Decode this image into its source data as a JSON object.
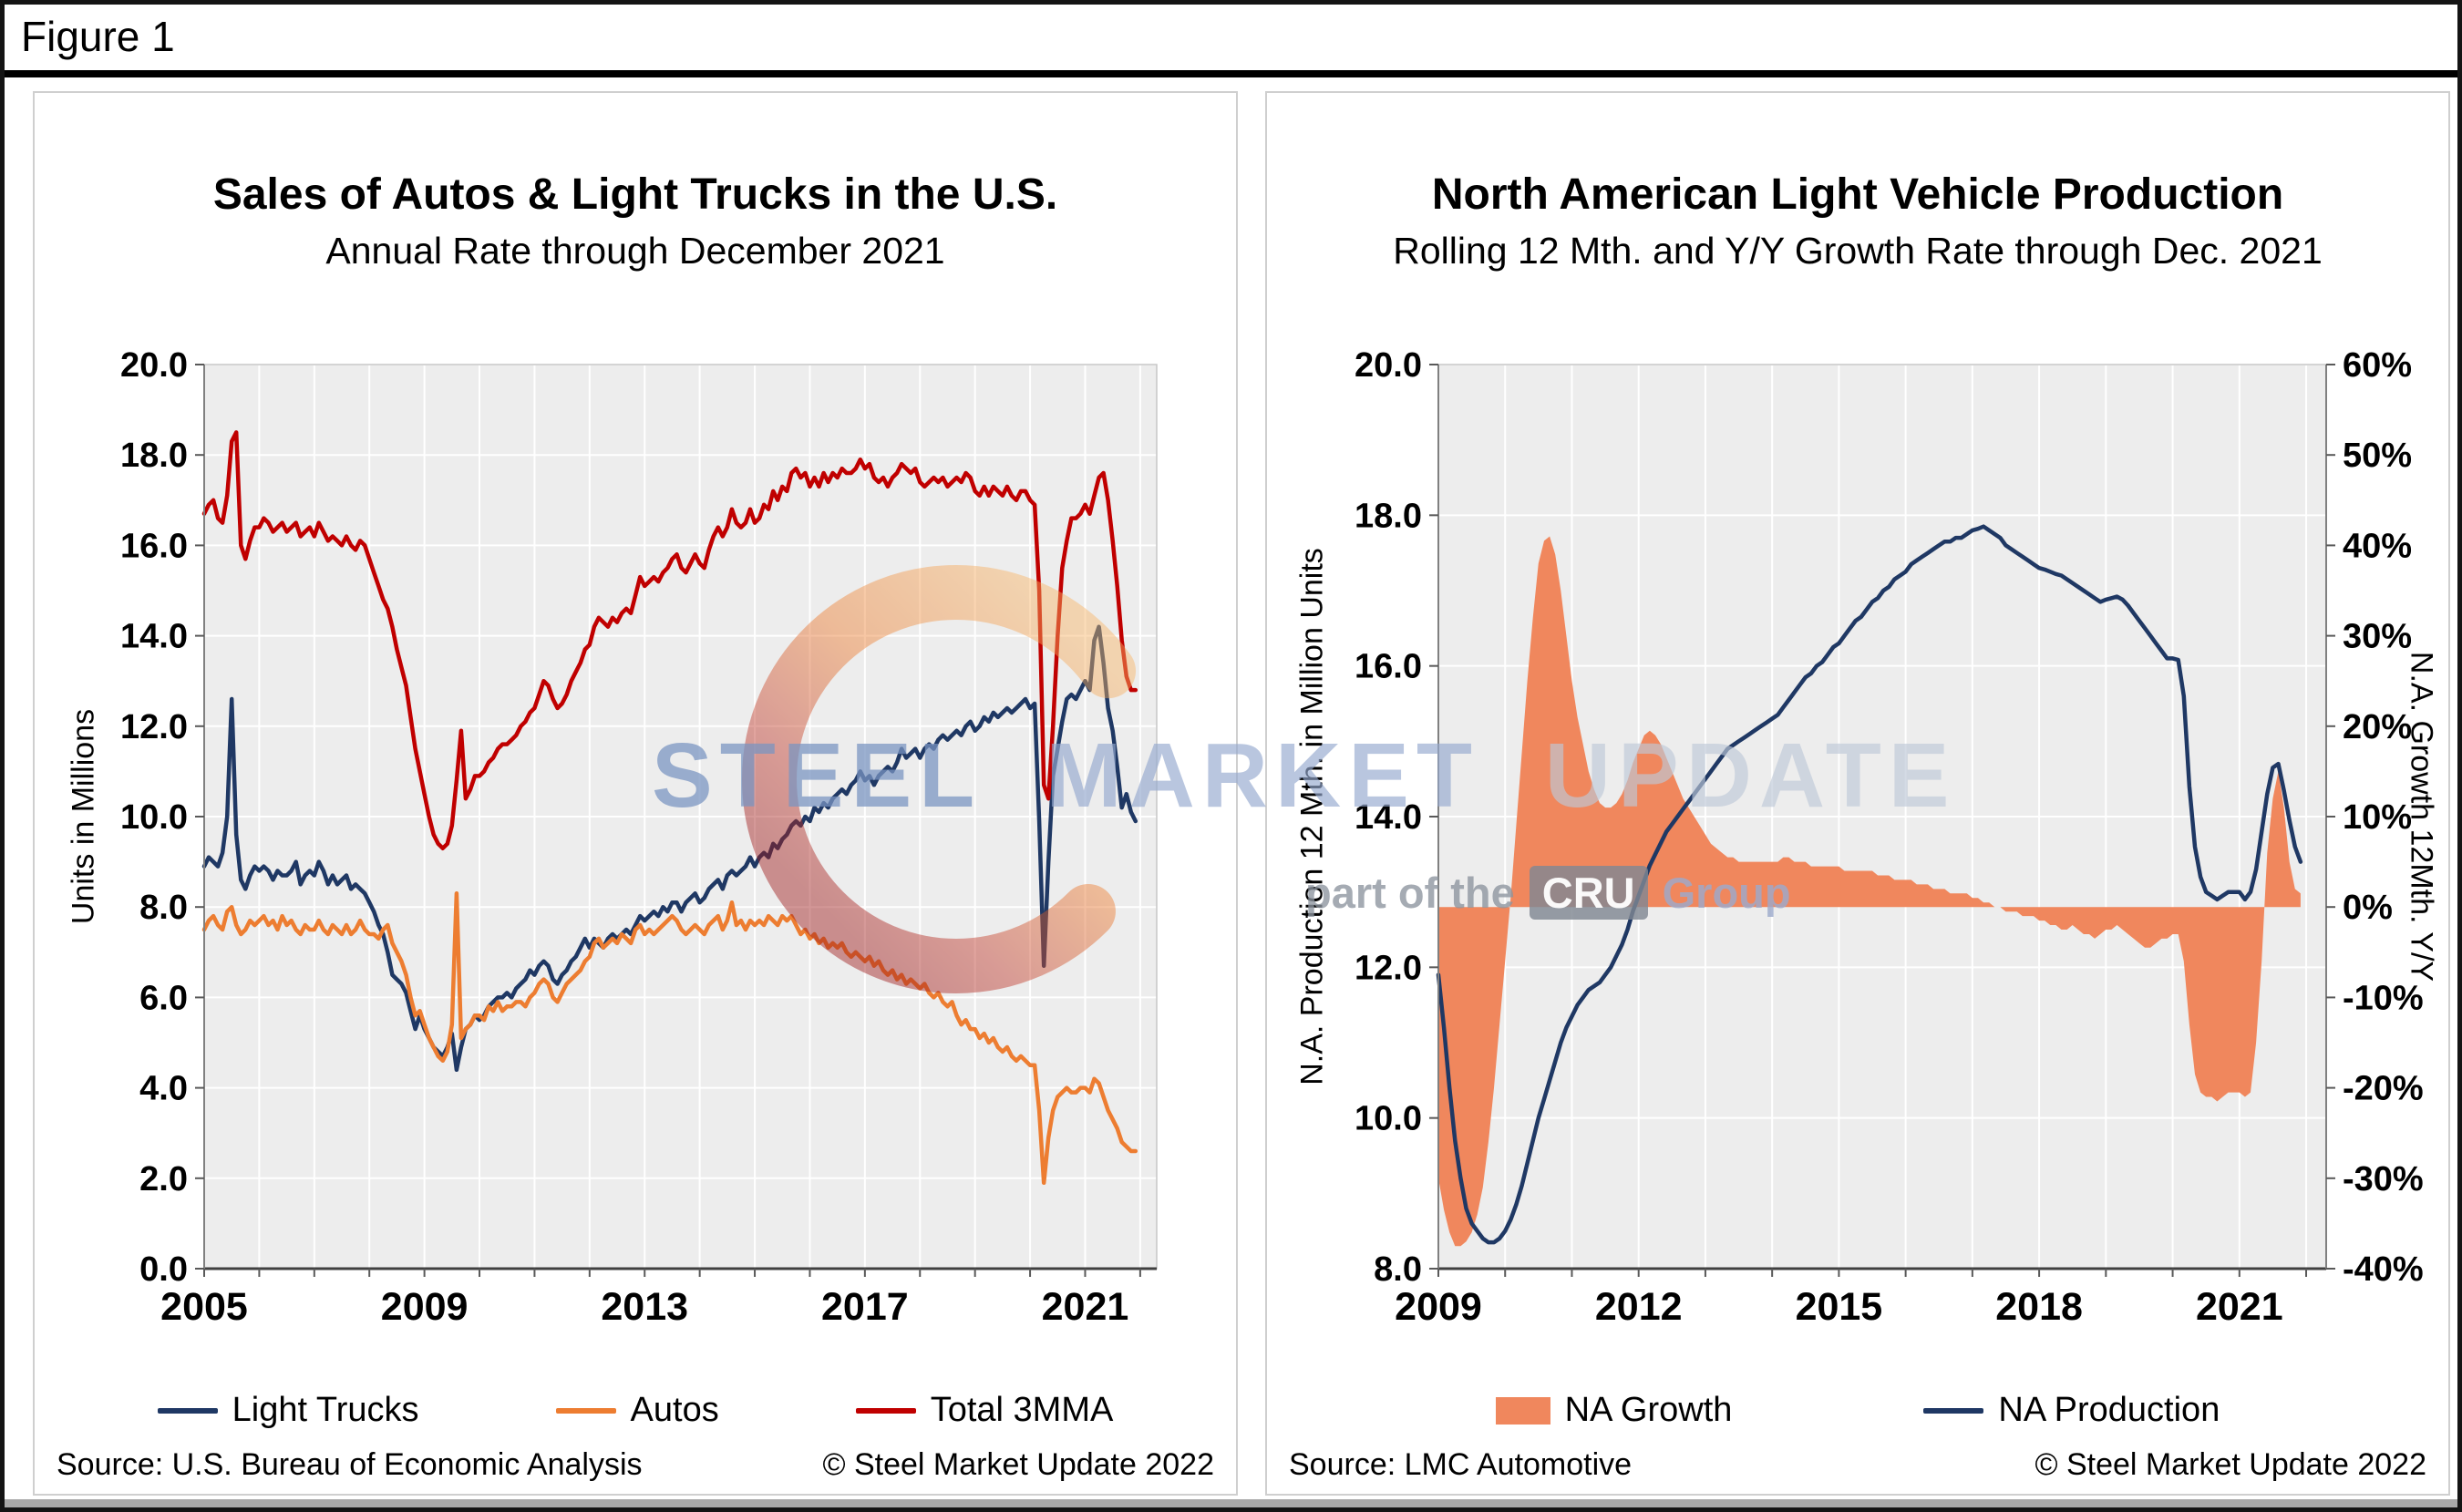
{
  "figure": {
    "label": "Figure 1"
  },
  "watermark": {
    "word1": "STEEL",
    "word2": "MARKET",
    "word3": "UPDATE",
    "tagline_prefix": "part of the",
    "tagline_box": "CRU",
    "tagline_suffix": "Group"
  },
  "colors": {
    "light_trucks": "#1F3864",
    "autos": "#ED7D31",
    "total_3mma": "#C00000",
    "na_growth": "#F0875D",
    "na_production": "#1F3864",
    "plot_bg": "#EDEDED",
    "gridline": "#FFFFFF"
  },
  "chart_data": [
    {
      "type": "line",
      "title": "Sales of Autos & Light Trucks in the U.S.",
      "subtitle": "Annual Rate through December 2021",
      "y_left": {
        "label": "Units in Millions",
        "min": 0,
        "max": 20,
        "step": 2,
        "decimals": 1
      },
      "x": {
        "min": 2005,
        "max": 2022.3,
        "start": 2005.0,
        "interval_months": 1,
        "ticks": [
          2005,
          2009,
          2013,
          2017,
          2021
        ]
      },
      "grid": true,
      "legend_position": "bottom",
      "source": "Source: U.S. Bureau of Economic Analysis",
      "copyright": "© Steel Market Update 2022",
      "series": [
        {
          "name": "Light Trucks",
          "type": "line",
          "axis": "left",
          "color": "#1F3864",
          "values": [
            8.9,
            9.1,
            9.0,
            8.9,
            9.2,
            10.0,
            12.6,
            9.6,
            8.6,
            8.4,
            8.7,
            8.9,
            8.8,
            8.9,
            8.8,
            8.6,
            8.8,
            8.7,
            8.7,
            8.8,
            9.0,
            8.5,
            8.7,
            8.8,
            8.7,
            9.0,
            8.8,
            8.5,
            8.7,
            8.5,
            8.6,
            8.7,
            8.4,
            8.5,
            8.4,
            8.3,
            8.1,
            7.9,
            7.6,
            7.4,
            7.0,
            6.5,
            6.4,
            6.3,
            6.1,
            5.7,
            5.3,
            5.6,
            5.3,
            5.1,
            4.9,
            4.8,
            4.7,
            4.9,
            5.2,
            4.4,
            4.9,
            5.3,
            5.4,
            5.6,
            5.5,
            5.6,
            5.8,
            5.9,
            6.0,
            6.0,
            6.1,
            6.0,
            6.2,
            6.3,
            6.4,
            6.6,
            6.5,
            6.7,
            6.8,
            6.7,
            6.4,
            6.3,
            6.5,
            6.6,
            6.8,
            6.9,
            7.1,
            7.3,
            7.1,
            7.3,
            7.2,
            7.1,
            7.3,
            7.4,
            7.3,
            7.4,
            7.5,
            7.4,
            7.6,
            7.8,
            7.7,
            7.8,
            7.9,
            7.8,
            8.0,
            7.9,
            8.1,
            8.1,
            7.9,
            8.1,
            8.2,
            8.3,
            8.1,
            8.2,
            8.4,
            8.5,
            8.6,
            8.4,
            8.7,
            8.8,
            8.7,
            8.8,
            8.9,
            9.1,
            8.9,
            9.1,
            9.2,
            9.1,
            9.4,
            9.3,
            9.5,
            9.6,
            9.8,
            9.9,
            9.8,
            10.0,
            9.9,
            10.2,
            10.1,
            10.3,
            10.2,
            10.4,
            10.5,
            10.6,
            10.5,
            10.7,
            10.8,
            11.0,
            10.8,
            10.9,
            10.7,
            10.9,
            11.0,
            11.1,
            11.0,
            11.2,
            11.5,
            11.3,
            11.4,
            11.5,
            11.3,
            11.5,
            11.6,
            11.5,
            11.7,
            11.8,
            11.7,
            11.8,
            11.9,
            11.8,
            12.0,
            12.1,
            11.9,
            12.0,
            12.2,
            12.1,
            12.3,
            12.2,
            12.3,
            12.4,
            12.3,
            12.4,
            12.5,
            12.6,
            12.4,
            12.5,
            9.9,
            6.7,
            9.0,
            10.9,
            11.5,
            12.1,
            12.6,
            12.7,
            12.6,
            12.8,
            13.0,
            12.8,
            13.9,
            14.2,
            13.4,
            12.4,
            11.9,
            11.1,
            10.2,
            10.5,
            10.1,
            9.9
          ]
        },
        {
          "name": "Autos",
          "type": "line",
          "axis": "left",
          "color": "#ED7D31",
          "values": [
            7.5,
            7.7,
            7.8,
            7.6,
            7.5,
            7.9,
            8.0,
            7.6,
            7.4,
            7.5,
            7.7,
            7.6,
            7.7,
            7.8,
            7.6,
            7.7,
            7.5,
            7.8,
            7.6,
            7.7,
            7.5,
            7.4,
            7.6,
            7.5,
            7.5,
            7.7,
            7.5,
            7.4,
            7.6,
            7.5,
            7.4,
            7.6,
            7.4,
            7.5,
            7.7,
            7.5,
            7.4,
            7.4,
            7.3,
            7.5,
            7.6,
            7.2,
            7.0,
            6.8,
            6.5,
            6.0,
            5.6,
            5.7,
            5.4,
            5.1,
            4.9,
            4.7,
            4.6,
            4.8,
            5.4,
            8.3,
            5.1,
            5.3,
            5.4,
            5.6,
            5.6,
            5.5,
            5.8,
            5.7,
            5.9,
            5.7,
            5.8,
            5.8,
            5.9,
            5.9,
            5.8,
            6.0,
            6.1,
            6.3,
            6.4,
            6.3,
            6.0,
            5.9,
            6.1,
            6.3,
            6.4,
            6.5,
            6.6,
            6.8,
            6.9,
            7.2,
            7.3,
            7.1,
            7.2,
            7.3,
            7.2,
            7.4,
            7.3,
            7.2,
            7.5,
            7.6,
            7.4,
            7.5,
            7.4,
            7.5,
            7.6,
            7.7,
            7.8,
            7.7,
            7.5,
            7.4,
            7.5,
            7.6,
            7.5,
            7.4,
            7.6,
            7.7,
            7.8,
            7.5,
            7.7,
            8.1,
            7.6,
            7.7,
            7.5,
            7.7,
            7.6,
            7.7,
            7.6,
            7.8,
            7.7,
            7.6,
            7.8,
            7.7,
            7.8,
            7.6,
            7.4,
            7.5,
            7.3,
            7.4,
            7.2,
            7.3,
            7.1,
            7.2,
            7.1,
            7.2,
            7.0,
            6.9,
            7.0,
            6.9,
            6.8,
            6.9,
            6.7,
            6.8,
            6.6,
            6.5,
            6.6,
            6.4,
            6.5,
            6.3,
            6.4,
            6.3,
            6.2,
            6.3,
            6.1,
            6.0,
            6.1,
            5.9,
            5.8,
            5.9,
            5.6,
            5.4,
            5.5,
            5.3,
            5.3,
            5.1,
            5.2,
            5.0,
            5.1,
            4.9,
            4.8,
            4.9,
            4.7,
            4.6,
            4.7,
            4.6,
            4.5,
            4.5,
            3.5,
            1.9,
            2.9,
            3.5,
            3.8,
            3.9,
            4.0,
            3.9,
            3.9,
            4.0,
            4.0,
            3.9,
            4.2,
            4.1,
            3.8,
            3.5,
            3.3,
            3.1,
            2.8,
            2.7,
            2.6,
            2.6
          ]
        },
        {
          "name": "Total 3MMA",
          "type": "line",
          "axis": "left",
          "color": "#C00000",
          "values": [
            16.7,
            16.9,
            17.0,
            16.6,
            16.5,
            17.1,
            18.3,
            18.5,
            16.0,
            15.7,
            16.1,
            16.4,
            16.4,
            16.6,
            16.5,
            16.3,
            16.4,
            16.5,
            16.3,
            16.4,
            16.5,
            16.2,
            16.3,
            16.4,
            16.2,
            16.5,
            16.3,
            16.1,
            16.2,
            16.1,
            16.0,
            16.2,
            16.0,
            15.9,
            16.1,
            16.0,
            15.7,
            15.4,
            15.1,
            14.8,
            14.6,
            14.2,
            13.7,
            13.3,
            12.9,
            12.2,
            11.5,
            11.0,
            10.5,
            10.0,
            9.6,
            9.4,
            9.3,
            9.4,
            9.8,
            10.8,
            11.9,
            10.4,
            10.6,
            10.9,
            10.9,
            11.0,
            11.2,
            11.3,
            11.5,
            11.6,
            11.6,
            11.7,
            11.8,
            12.0,
            12.1,
            12.3,
            12.4,
            12.7,
            13.0,
            12.9,
            12.6,
            12.4,
            12.5,
            12.7,
            13.0,
            13.2,
            13.4,
            13.7,
            13.8,
            14.2,
            14.4,
            14.3,
            14.2,
            14.4,
            14.3,
            14.5,
            14.6,
            14.5,
            14.9,
            15.3,
            15.1,
            15.2,
            15.3,
            15.2,
            15.4,
            15.5,
            15.7,
            15.8,
            15.5,
            15.4,
            15.6,
            15.8,
            15.6,
            15.5,
            15.9,
            16.2,
            16.4,
            16.2,
            16.4,
            16.8,
            16.5,
            16.4,
            16.5,
            16.8,
            16.5,
            16.6,
            16.9,
            16.8,
            17.2,
            17.0,
            17.3,
            17.2,
            17.6,
            17.7,
            17.5,
            17.6,
            17.3,
            17.5,
            17.3,
            17.6,
            17.4,
            17.6,
            17.5,
            17.7,
            17.6,
            17.6,
            17.7,
            17.9,
            17.7,
            17.8,
            17.5,
            17.4,
            17.5,
            17.3,
            17.5,
            17.6,
            17.8,
            17.7,
            17.6,
            17.7,
            17.4,
            17.3,
            17.4,
            17.5,
            17.4,
            17.5,
            17.3,
            17.4,
            17.5,
            17.4,
            17.6,
            17.5,
            17.2,
            17.1,
            17.3,
            17.1,
            17.3,
            17.2,
            17.1,
            17.3,
            17.1,
            17.0,
            17.2,
            17.2,
            17.0,
            16.9,
            15.0,
            10.7,
            10.4,
            12.0,
            14.0,
            15.5,
            16.1,
            16.6,
            16.6,
            16.7,
            16.9,
            16.7,
            17.1,
            17.5,
            17.6,
            17.0,
            16.1,
            15.1,
            13.9,
            13.1,
            12.8,
            12.8
          ]
        }
      ]
    },
    {
      "type": "line",
      "title": "North American Light Vehicle Production",
      "subtitle": "Rolling 12 Mth. and Y/Y Growth Rate through Dec. 2021",
      "y_left": {
        "label": "N.A. Production 12 Mth. in Million Units",
        "min": 8,
        "max": 20,
        "step": 2,
        "decimals": 1
      },
      "y_right": {
        "label": "N.A. Growth 12Mth. Y/Y",
        "min": -40,
        "max": 60,
        "step": 10,
        "suffix": "%"
      },
      "x": {
        "min": 2009,
        "max": 2022.3,
        "start": 2009.0,
        "interval_months": 1,
        "ticks": [
          2009,
          2012,
          2015,
          2018,
          2021
        ]
      },
      "grid": true,
      "legend_position": "bottom",
      "source": "Source: LMC Automotive",
      "copyright": "© Steel Market Update 2022",
      "series": [
        {
          "name": "NA Growth",
          "type": "area",
          "axis": "right",
          "color": "#F0875D",
          "values": [
            -30,
            -33.5,
            -36,
            -37.5,
            -37.5,
            -37,
            -36,
            -34,
            -31,
            -26,
            -20,
            -13,
            -6,
            1,
            9,
            17,
            25,
            32,
            38,
            40.5,
            41,
            39,
            35,
            30,
            25,
            21,
            18,
            15,
            13,
            11.5,
            11,
            11,
            11.5,
            12.5,
            14,
            16,
            17.5,
            19,
            19.5,
            19,
            18,
            16.5,
            15,
            13.5,
            12,
            11,
            10,
            9,
            8,
            7,
            6.5,
            6,
            5.5,
            5.5,
            5,
            5,
            5,
            5,
            5,
            5,
            5,
            5,
            5.5,
            5.5,
            5,
            5,
            5,
            4.5,
            4.5,
            4.5,
            4.5,
            4.5,
            4.5,
            4,
            4,
            4,
            4,
            4,
            4,
            3.5,
            3.5,
            3.5,
            3,
            3,
            3,
            3,
            2.5,
            2.5,
            2.5,
            2,
            2,
            2,
            1.5,
            1.5,
            1.5,
            1.5,
            1,
            1,
            0.5,
            0.5,
            0,
            0,
            -0.5,
            -0.5,
            -0.5,
            -1,
            -1,
            -1,
            -1.5,
            -1.5,
            -2,
            -2,
            -2.5,
            -2.5,
            -2,
            -2.5,
            -3,
            -3,
            -3.5,
            -3,
            -2.5,
            -2.5,
            -2,
            -2.5,
            -3,
            -3.5,
            -4,
            -4.5,
            -4.5,
            -4,
            -3.5,
            -3.5,
            -3,
            -3,
            -6,
            -13,
            -18.5,
            -20.5,
            -21,
            -21,
            -21.5,
            -21,
            -20.5,
            -20.5,
            -20.5,
            -21,
            -20.5,
            -15,
            -6,
            6,
            12,
            15,
            11,
            5,
            2,
            1.5
          ]
        },
        {
          "name": "NA Production",
          "type": "line",
          "axis": "left",
          "color": "#1F3864",
          "values": [
            11.9,
            11.2,
            10.4,
            9.7,
            9.2,
            8.8,
            8.6,
            8.5,
            8.4,
            8.35,
            8.35,
            8.4,
            8.5,
            8.65,
            8.85,
            9.1,
            9.4,
            9.7,
            10.0,
            10.25,
            10.5,
            10.75,
            11.0,
            11.2,
            11.35,
            11.5,
            11.6,
            11.7,
            11.75,
            11.8,
            11.9,
            12.0,
            12.15,
            12.3,
            12.5,
            12.75,
            12.95,
            13.15,
            13.35,
            13.5,
            13.65,
            13.8,
            13.9,
            14.0,
            14.1,
            14.2,
            14.3,
            14.4,
            14.5,
            14.6,
            14.7,
            14.8,
            14.9,
            14.95,
            15.0,
            15.05,
            15.1,
            15.15,
            15.2,
            15.25,
            15.3,
            15.35,
            15.45,
            15.55,
            15.65,
            15.75,
            15.85,
            15.9,
            16.0,
            16.05,
            16.15,
            16.25,
            16.3,
            16.4,
            16.5,
            16.6,
            16.65,
            16.75,
            16.85,
            16.9,
            17.0,
            17.05,
            17.15,
            17.2,
            17.25,
            17.35,
            17.4,
            17.45,
            17.5,
            17.55,
            17.6,
            17.65,
            17.65,
            17.7,
            17.7,
            17.75,
            17.8,
            17.82,
            17.85,
            17.8,
            17.75,
            17.7,
            17.6,
            17.55,
            17.5,
            17.45,
            17.4,
            17.35,
            17.3,
            17.28,
            17.25,
            17.22,
            17.2,
            17.15,
            17.1,
            17.05,
            17.0,
            16.95,
            16.9,
            16.85,
            16.88,
            16.9,
            16.92,
            16.88,
            16.8,
            16.7,
            16.6,
            16.5,
            16.4,
            16.3,
            16.2,
            16.1,
            16.1,
            16.08,
            15.6,
            14.4,
            13.6,
            13.2,
            13.0,
            12.95,
            12.9,
            12.95,
            13.0,
            13.0,
            13.0,
            12.9,
            13.0,
            13.3,
            13.8,
            14.3,
            14.65,
            14.7,
            14.35,
            13.95,
            13.6,
            13.4
          ]
        }
      ]
    }
  ]
}
